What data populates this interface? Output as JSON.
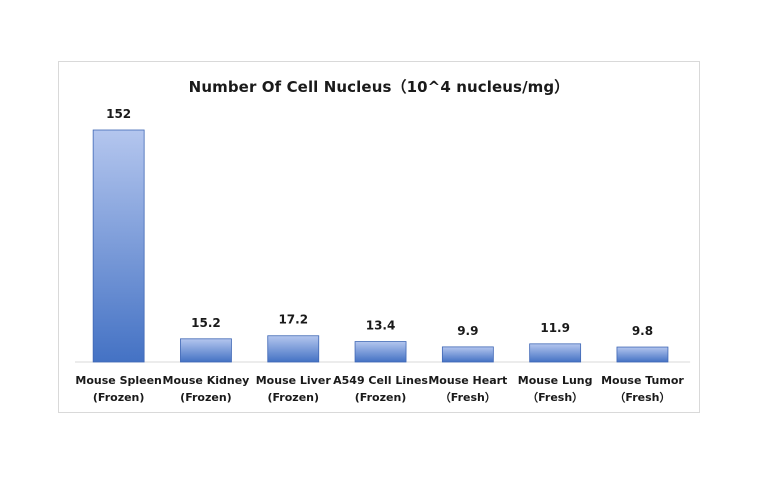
{
  "chart_data": {
    "type": "bar",
    "title": "Number Of Cell Nucleus（10^4 nucleus/mg）",
    "categories": [
      [
        "Mouse Spleen",
        "(Frozen)"
      ],
      [
        "Mouse Kidney",
        "(Frozen)"
      ],
      [
        "Mouse Liver",
        "(Frozen)"
      ],
      [
        "A549 Cell Lines",
        "(Frozen)"
      ],
      [
        "Mouse Heart",
        "（Fresh）"
      ],
      [
        "Mouse Lung",
        "（Fresh）"
      ],
      [
        "Mouse Tumor",
        "（Fresh）"
      ]
    ],
    "values": [
      152,
      15.2,
      17.2,
      13.4,
      9.9,
      11.9,
      9.8
    ],
    "value_labels": [
      "152",
      "15.2",
      "17.2",
      "13.4",
      "9.9",
      "11.9",
      "9.8"
    ],
    "ylim": [
      0,
      152
    ],
    "grid": false,
    "legend": "none",
    "xlabel": "",
    "ylabel": "",
    "colors": {
      "bar_top": "#b4c6ee",
      "bar_bottom": "#4472c4",
      "bar_edge": "#3f67b5",
      "axis": "#d9d9d9"
    }
  }
}
